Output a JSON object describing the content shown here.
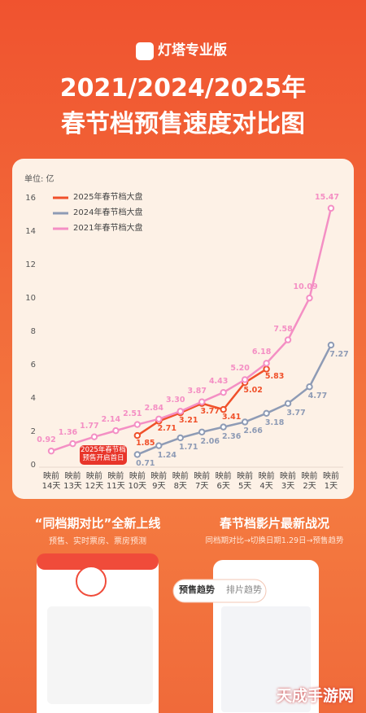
{
  "brand": "灯塔专业版",
  "chart_data": {
    "type": "line",
    "title": "2021/2024/2025年",
    "subtitle": "春节档预售速度对比图",
    "unit_label": "单位: 亿",
    "annotation": "2025年春节档\n预售开启首日",
    "legend": "upper-left",
    "grid": false,
    "categories": [
      "映前\n14天",
      "映前\n13天",
      "映前\n12天",
      "映前\n11天",
      "映前\n10天",
      "映前\n9天",
      "映前\n8天",
      "映前\n7天",
      "映前\n6天",
      "映前\n5天",
      "映前\n4天",
      "映前\n3天",
      "映前\n2天",
      "映前\n1天"
    ],
    "series": [
      {
        "name": "2025年春节档大盘",
        "color": "#f0502a",
        "values": [
          null,
          null,
          null,
          null,
          1.85,
          2.71,
          3.21,
          3.77,
          3.41,
          5.02,
          5.83,
          null,
          null,
          null
        ],
        "value_labels": [
          null,
          null,
          null,
          null,
          "1.85",
          "2.71",
          "3.21",
          "3.77",
          "3.41",
          "5.02",
          "5.83",
          null,
          null,
          null
        ]
      },
      {
        "name": "2024年春节档大盘",
        "color": "#8e9bb5",
        "values": [
          null,
          null,
          null,
          null,
          0.71,
          1.24,
          1.71,
          2.06,
          2.36,
          2.66,
          3.18,
          3.77,
          4.77,
          7.27
        ],
        "value_labels": [
          null,
          null,
          null,
          null,
          "0.71",
          "1.24",
          "1.71",
          "2.06",
          "2.36",
          "2.66",
          "3.18",
          "3.77",
          "4.77",
          "7.27"
        ]
      },
      {
        "name": "2021年春节档大盘",
        "color": "#f48fc4",
        "values": [
          0.92,
          1.36,
          1.77,
          2.14,
          2.51,
          2.84,
          3.3,
          3.87,
          4.43,
          5.2,
          6.18,
          7.58,
          10.09,
          15.47
        ],
        "value_labels": [
          "0.92",
          "1.36",
          "1.77",
          "2.14",
          "2.51",
          "2.84",
          "3.30",
          "3.87",
          "4.43",
          "5.20",
          "6.18",
          "7.58",
          "10.09",
          "15.47"
        ]
      }
    ],
    "ylim": [
      0,
      16
    ],
    "yticks": [
      0,
      2,
      4,
      6,
      8,
      10,
      12,
      14,
      16
    ]
  },
  "promo": {
    "left_title": "“同档期对比”全新上线",
    "left_subtitle": "预售、实时票房、票房预测",
    "right_title": "春节档影片最新战况",
    "right_subtitle": "同档期对比→切换日期1.29日→预售趋势",
    "tabs": [
      "预售趋势",
      "排片趋势"
    ]
  },
  "watermark": "天成手游网"
}
